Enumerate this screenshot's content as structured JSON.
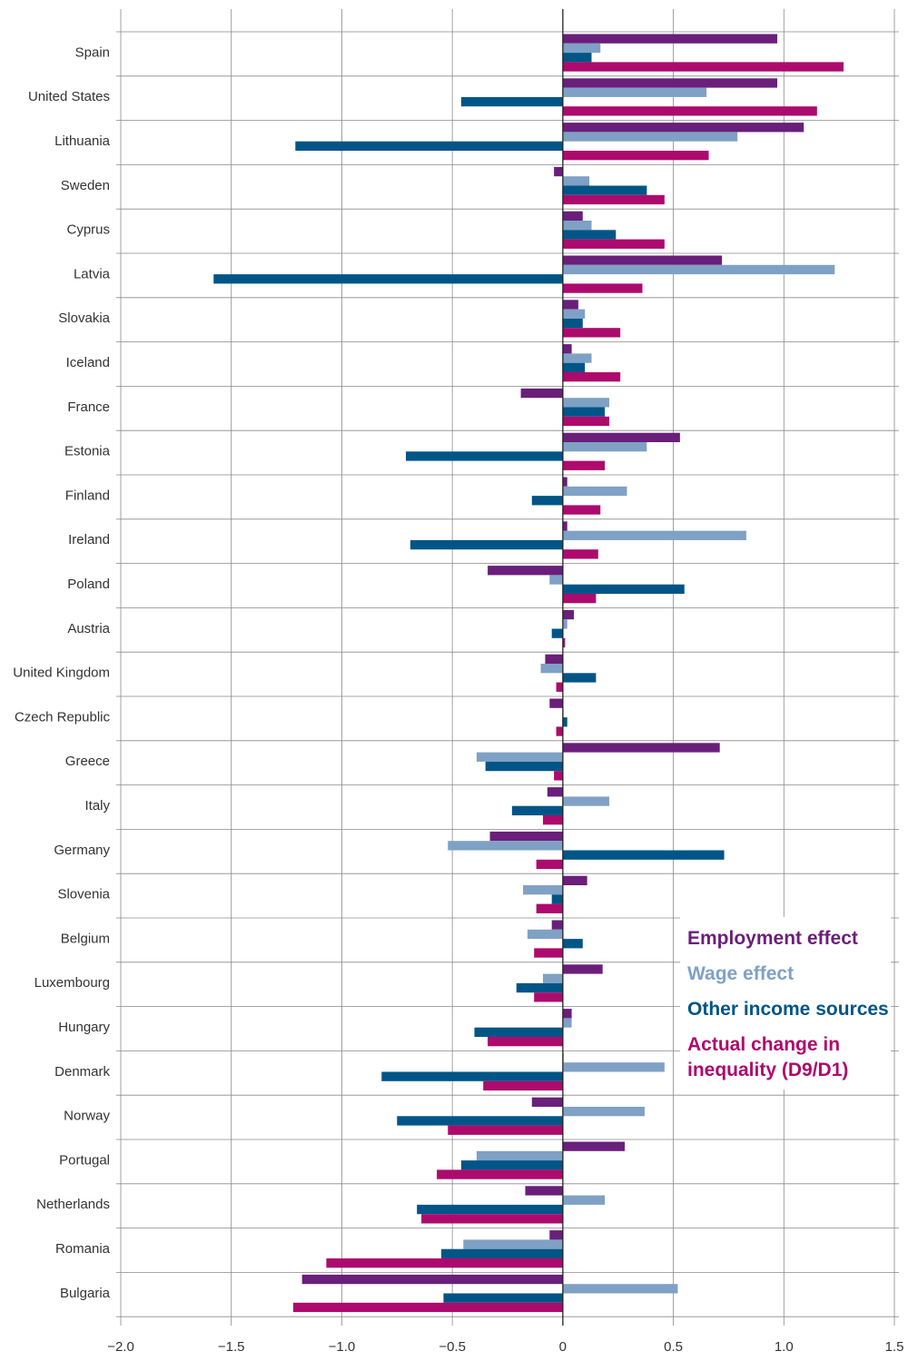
{
  "chart_data": {
    "type": "bar",
    "orientation": "horizontal",
    "title": "",
    "xlabel": "",
    "ylabel": "",
    "xlim": [
      -2.0,
      1.5
    ],
    "x_ticks": [
      -2.0,
      -1.5,
      -1.0,
      -0.5,
      0,
      0.5,
      1.0,
      1.5
    ],
    "x_tick_labels": [
      "−2.0",
      "−1.5",
      "−1.0",
      "−0.5",
      "0",
      "0.5",
      "1.0",
      "1.5"
    ],
    "grid": true,
    "legend_position": "right",
    "categories": [
      "Spain",
      "United States",
      "Lithuania",
      "Sweden",
      "Cyprus",
      "Latvia",
      "Slovakia",
      "Iceland",
      "France",
      "Estonia",
      "Finland",
      "Ireland",
      "Poland",
      "Austria",
      "United Kingdom",
      "Czech Republic",
      "Greece",
      "Italy",
      "Germany",
      "Slovenia",
      "Belgium",
      "Luxembourg",
      "Hungary",
      "Denmark",
      "Norway",
      "Portugal",
      "Netherlands",
      "Romania",
      "Bulgaria"
    ],
    "series": [
      {
        "name": "Employment effect",
        "legend_lines": [
          "Employment effect"
        ],
        "color": "#6a1f7a",
        "values": [
          0.97,
          0.97,
          1.09,
          -0.04,
          0.09,
          0.72,
          0.07,
          0.04,
          -0.19,
          0.53,
          0.02,
          0.02,
          -0.34,
          0.05,
          -0.08,
          -0.06,
          0.71,
          -0.07,
          -0.33,
          0.11,
          -0.05,
          0.18,
          0.04,
          0.0,
          -0.14,
          0.28,
          -0.17,
          -0.06,
          -1.18
        ]
      },
      {
        "name": "Wage effect",
        "legend_lines": [
          "Wage effect"
        ],
        "color": "#7fa1c5",
        "values": [
          0.17,
          0.65,
          0.79,
          0.12,
          0.13,
          1.23,
          0.1,
          0.13,
          0.21,
          0.38,
          0.29,
          0.83,
          -0.06,
          0.02,
          -0.1,
          0.0,
          -0.39,
          0.21,
          -0.52,
          -0.18,
          -0.16,
          -0.09,
          0.04,
          0.46,
          0.37,
          -0.39,
          0.19,
          -0.45,
          0.52
        ]
      },
      {
        "name": "Other income sources",
        "legend_lines": [
          "Other income sources"
        ],
        "color": "#005587",
        "values": [
          0.13,
          -0.46,
          -1.21,
          0.38,
          0.24,
          -1.58,
          0.09,
          0.1,
          0.19,
          -0.71,
          -0.14,
          -0.69,
          0.55,
          -0.05,
          0.15,
          0.02,
          -0.35,
          -0.23,
          0.73,
          -0.05,
          0.09,
          -0.21,
          -0.4,
          -0.82,
          -0.75,
          -0.46,
          -0.66,
          -0.55,
          -0.54
        ]
      },
      {
        "name": "Actual change in inequality (D9/D1)",
        "legend_lines": [
          "Actual change in",
          "inequality (D9/D1)"
        ],
        "color": "#ad0a6e",
        "values": [
          1.27,
          1.15,
          0.66,
          0.46,
          0.46,
          0.36,
          0.26,
          0.26,
          0.21,
          0.19,
          0.17,
          0.16,
          0.15,
          0.01,
          -0.03,
          -0.03,
          -0.04,
          -0.09,
          -0.12,
          -0.12,
          -0.13,
          -0.13,
          -0.34,
          -0.36,
          -0.52,
          -0.57,
          -0.64,
          -1.07,
          -1.22
        ]
      }
    ]
  }
}
